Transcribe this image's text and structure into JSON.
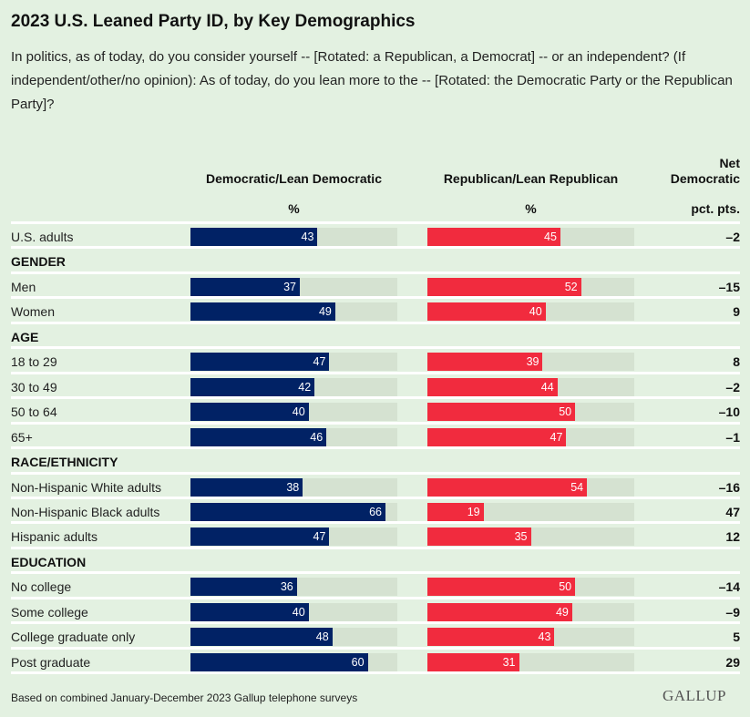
{
  "chart_data": {
    "type": "bar",
    "title": "2023 U.S. Leaned Party ID, by Key Demographics",
    "subtitle": "In politics, as of today, do you consider yourself -- [Rotated: a Republican, a Democrat] -- or an independent? (If independent/other/no opinion): As of today, do you lean more to the -- [Rotated: the Democratic Party or the Republican Party]?",
    "columns": {
      "dem": "Democratic/Lean Democratic",
      "dem_unit": "%",
      "rep": "Republican/Lean Republican",
      "rep_unit": "%",
      "net_line1": "Net",
      "net_line2": "Democratic",
      "net_unit": "pct. pts."
    },
    "xlim": [
      0,
      70
    ],
    "colors": {
      "dem": "#012265",
      "rep": "#f12b3e",
      "track": "#d5e2d1",
      "background": "#e3f1e1"
    },
    "rows": [
      {
        "label": "U.S. adults",
        "dem": 43,
        "rep": 45,
        "net": "–2"
      },
      {
        "label": "GENDER",
        "header": true
      },
      {
        "label": "Men",
        "dem": 37,
        "rep": 52,
        "net": "–15"
      },
      {
        "label": "Women",
        "dem": 49,
        "rep": 40,
        "net": "9"
      },
      {
        "label": "AGE",
        "header": true
      },
      {
        "label": "18 to 29",
        "dem": 47,
        "rep": 39,
        "net": "8"
      },
      {
        "label": "30 to 49",
        "dem": 42,
        "rep": 44,
        "net": "–2"
      },
      {
        "label": "50 to 64",
        "dem": 40,
        "rep": 50,
        "net": "–10"
      },
      {
        "label": "65+",
        "dem": 46,
        "rep": 47,
        "net": "–1"
      },
      {
        "label": "RACE/ETHNICITY",
        "header": true
      },
      {
        "label": "Non-Hispanic White adults",
        "dem": 38,
        "rep": 54,
        "net": "–16"
      },
      {
        "label": "Non-Hispanic Black adults",
        "dem": 66,
        "rep": 19,
        "net": "47"
      },
      {
        "label": "Hispanic adults",
        "dem": 47,
        "rep": 35,
        "net": "12"
      },
      {
        "label": "EDUCATION",
        "header": true
      },
      {
        "label": "No college",
        "dem": 36,
        "rep": 50,
        "net": "–14"
      },
      {
        "label": "Some college",
        "dem": 40,
        "rep": 49,
        "net": "–9"
      },
      {
        "label": "College graduate only",
        "dem": 48,
        "rep": 43,
        "net": "5"
      },
      {
        "label": "Post graduate",
        "dem": 60,
        "rep": 31,
        "net": "29"
      }
    ],
    "footnote": "Based on combined January-December 2023 Gallup telephone surveys",
    "logo": "GALLUP"
  }
}
